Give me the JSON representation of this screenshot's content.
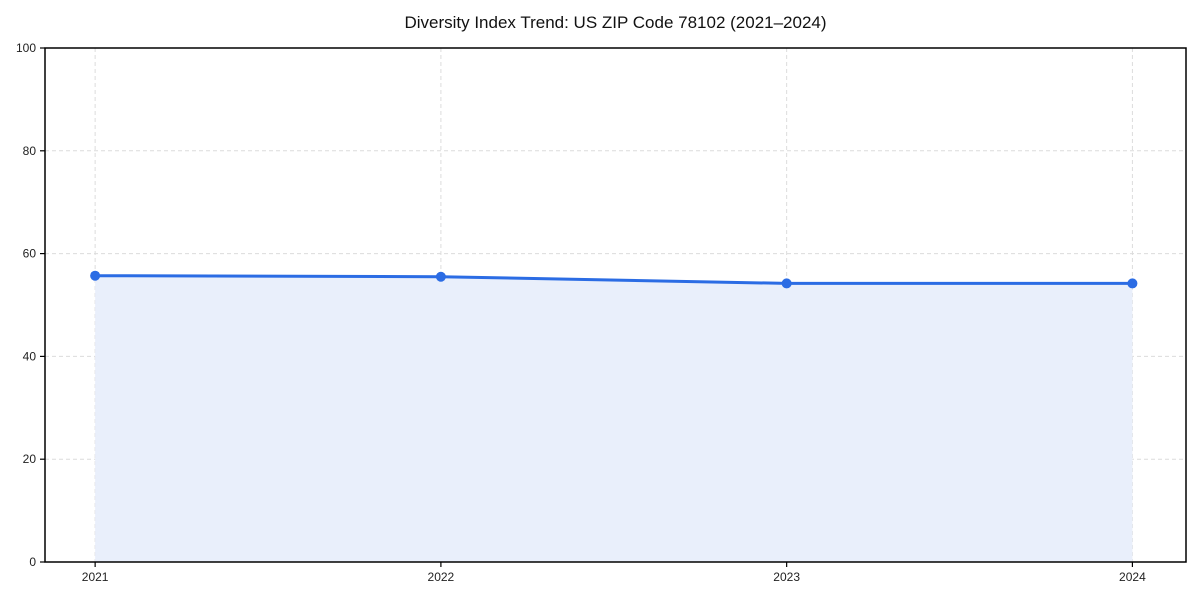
{
  "chart_data": {
    "type": "area",
    "title": "Diversity Index Trend: US ZIP Code 78102 (2021–2024)",
    "x": [
      2021,
      2022,
      2023,
      2024
    ],
    "x_tick_labels": [
      "2021",
      "2022",
      "2023",
      "2024"
    ],
    "series": [
      {
        "name": "Diversity Index",
        "values": [
          55.7,
          55.5,
          54.2,
          54.2
        ]
      }
    ],
    "xlabel": "",
    "ylabel": "",
    "xlim": [
      2020.855,
      2024.155
    ],
    "ylim": [
      0,
      100
    ],
    "yticks": [
      0,
      20,
      40,
      60,
      80,
      100
    ],
    "grid": "dashed-both-axes",
    "legend": "none",
    "marker": "circle",
    "colors": {
      "line": "#2b6ce4",
      "marker": "#2b6ce4",
      "fill": "#e9effb",
      "grid": "#dcdcdc",
      "axis": "#000000",
      "tick_text": "#222222",
      "title_text": "#111111",
      "background": "#ffffff"
    }
  }
}
